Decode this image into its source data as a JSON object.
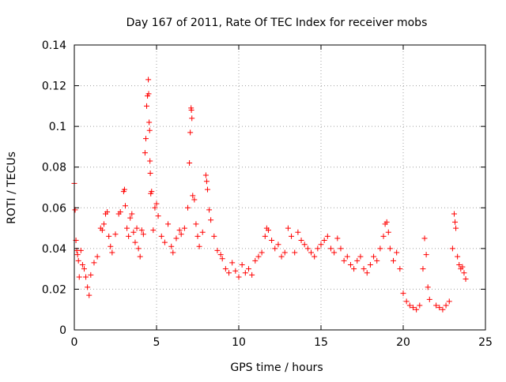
{
  "chart_data": {
    "type": "scatter",
    "title": "Day 167 of 2011, Rate Of TEC Index for receiver mobs",
    "xlabel": "GPS time / hours",
    "ylabel": "ROTI / TECUs",
    "xlim": [
      0,
      25
    ],
    "ylim": [
      0,
      0.14
    ],
    "x_ticks": [
      0,
      5,
      10,
      15,
      20,
      25
    ],
    "y_ticks": [
      0,
      0.02,
      0.04,
      0.06,
      0.08,
      0.1,
      0.12,
      0.14
    ],
    "x_tick_labels": [
      "0",
      "5",
      "10",
      "15",
      "20",
      "25"
    ],
    "y_tick_labels": [
      "0",
      "0.02",
      "0.04",
      "0.06",
      "0.08",
      "0.1",
      "0.12",
      "0.14"
    ],
    "grid": true,
    "marker": "+",
    "color": "#ff0000",
    "series": [
      {
        "name": "ROTI",
        "points": [
          [
            0.0,
            0.072
          ],
          [
            0.05,
            0.059
          ],
          [
            0.1,
            0.044
          ],
          [
            0.15,
            0.039
          ],
          [
            0.2,
            0.037
          ],
          [
            0.25,
            0.034
          ],
          [
            0.3,
            0.026
          ],
          [
            0.4,
            0.039
          ],
          [
            0.5,
            0.032
          ],
          [
            0.6,
            0.03
          ],
          [
            0.7,
            0.026
          ],
          [
            0.8,
            0.021
          ],
          [
            0.9,
            0.017
          ],
          [
            1.0,
            0.027
          ],
          [
            1.2,
            0.033
          ],
          [
            1.4,
            0.036
          ],
          [
            1.6,
            0.05
          ],
          [
            1.7,
            0.049
          ],
          [
            1.8,
            0.052
          ],
          [
            1.9,
            0.057
          ],
          [
            2.0,
            0.058
          ],
          [
            2.1,
            0.046
          ],
          [
            2.2,
            0.041
          ],
          [
            2.3,
            0.038
          ],
          [
            2.5,
            0.047
          ],
          [
            2.7,
            0.057
          ],
          [
            2.8,
            0.058
          ],
          [
            3.0,
            0.068
          ],
          [
            3.05,
            0.069
          ],
          [
            3.1,
            0.061
          ],
          [
            3.2,
            0.05
          ],
          [
            3.3,
            0.046
          ],
          [
            3.4,
            0.055
          ],
          [
            3.5,
            0.057
          ],
          [
            3.6,
            0.048
          ],
          [
            3.7,
            0.043
          ],
          [
            3.8,
            0.05
          ],
          [
            3.9,
            0.04
          ],
          [
            4.0,
            0.036
          ],
          [
            4.1,
            0.049
          ],
          [
            4.2,
            0.047
          ],
          [
            4.3,
            0.087
          ],
          [
            4.35,
            0.094
          ],
          [
            4.4,
            0.11
          ],
          [
            4.45,
            0.115
          ],
          [
            4.5,
            0.123
          ],
          [
            4.52,
            0.116
          ],
          [
            4.55,
            0.102
          ],
          [
            4.58,
            0.098
          ],
          [
            4.6,
            0.083
          ],
          [
            4.62,
            0.077
          ],
          [
            4.65,
            0.067
          ],
          [
            4.7,
            0.068
          ],
          [
            4.8,
            0.049
          ],
          [
            4.9,
            0.06
          ],
          [
            5.0,
            0.062
          ],
          [
            5.1,
            0.056
          ],
          [
            5.3,
            0.046
          ],
          [
            5.5,
            0.043
          ],
          [
            5.7,
            0.052
          ],
          [
            5.9,
            0.041
          ],
          [
            6.0,
            0.038
          ],
          [
            6.2,
            0.045
          ],
          [
            6.4,
            0.049
          ],
          [
            6.5,
            0.047
          ],
          [
            6.7,
            0.05
          ],
          [
            6.9,
            0.06
          ],
          [
            7.0,
            0.082
          ],
          [
            7.05,
            0.097
          ],
          [
            7.1,
            0.109
          ],
          [
            7.12,
            0.108
          ],
          [
            7.15,
            0.104
          ],
          [
            7.2,
            0.066
          ],
          [
            7.3,
            0.064
          ],
          [
            7.4,
            0.052
          ],
          [
            7.5,
            0.046
          ],
          [
            7.6,
            0.041
          ],
          [
            7.8,
            0.048
          ],
          [
            8.0,
            0.076
          ],
          [
            8.05,
            0.073
          ],
          [
            8.1,
            0.069
          ],
          [
            8.2,
            0.059
          ],
          [
            8.3,
            0.054
          ],
          [
            8.5,
            0.046
          ],
          [
            8.7,
            0.039
          ],
          [
            8.9,
            0.037
          ],
          [
            9.0,
            0.035
          ],
          [
            9.2,
            0.03
          ],
          [
            9.4,
            0.028
          ],
          [
            9.6,
            0.033
          ],
          [
            9.8,
            0.029
          ],
          [
            10.0,
            0.026
          ],
          [
            10.2,
            0.032
          ],
          [
            10.4,
            0.028
          ],
          [
            10.6,
            0.03
          ],
          [
            10.8,
            0.027
          ],
          [
            11.0,
            0.034
          ],
          [
            11.2,
            0.036
          ],
          [
            11.4,
            0.038
          ],
          [
            11.6,
            0.046
          ],
          [
            11.7,
            0.05
          ],
          [
            11.8,
            0.049
          ],
          [
            12.0,
            0.044
          ],
          [
            12.2,
            0.04
          ],
          [
            12.4,
            0.042
          ],
          [
            12.6,
            0.036
          ],
          [
            12.8,
            0.038
          ],
          [
            13.0,
            0.05
          ],
          [
            13.2,
            0.046
          ],
          [
            13.4,
            0.038
          ],
          [
            13.6,
            0.048
          ],
          [
            13.8,
            0.044
          ],
          [
            14.0,
            0.042
          ],
          [
            14.2,
            0.04
          ],
          [
            14.4,
            0.038
          ],
          [
            14.6,
            0.036
          ],
          [
            14.8,
            0.04
          ],
          [
            15.0,
            0.042
          ],
          [
            15.2,
            0.044
          ],
          [
            15.4,
            0.046
          ],
          [
            15.6,
            0.04
          ],
          [
            15.8,
            0.038
          ],
          [
            16.0,
            0.045
          ],
          [
            16.2,
            0.04
          ],
          [
            16.4,
            0.034
          ],
          [
            16.6,
            0.036
          ],
          [
            16.8,
            0.032
          ],
          [
            17.0,
            0.03
          ],
          [
            17.2,
            0.034
          ],
          [
            17.4,
            0.036
          ],
          [
            17.6,
            0.03
          ],
          [
            17.8,
            0.028
          ],
          [
            18.0,
            0.032
          ],
          [
            18.2,
            0.036
          ],
          [
            18.4,
            0.034
          ],
          [
            18.6,
            0.04
          ],
          [
            18.8,
            0.046
          ],
          [
            18.9,
            0.052
          ],
          [
            19.0,
            0.053
          ],
          [
            19.1,
            0.048
          ],
          [
            19.2,
            0.04
          ],
          [
            19.4,
            0.034
          ],
          [
            19.6,
            0.038
          ],
          [
            19.8,
            0.03
          ],
          [
            20.0,
            0.018
          ],
          [
            20.2,
            0.014
          ],
          [
            20.4,
            0.012
          ],
          [
            20.6,
            0.011
          ],
          [
            20.8,
            0.01
          ],
          [
            21.0,
            0.012
          ],
          [
            21.2,
            0.03
          ],
          [
            21.3,
            0.045
          ],
          [
            21.4,
            0.037
          ],
          [
            21.5,
            0.021
          ],
          [
            21.6,
            0.015
          ],
          [
            22.0,
            0.012
          ],
          [
            22.2,
            0.011
          ],
          [
            22.4,
            0.01
          ],
          [
            22.6,
            0.012
          ],
          [
            22.8,
            0.014
          ],
          [
            23.0,
            0.04
          ],
          [
            23.1,
            0.057
          ],
          [
            23.15,
            0.053
          ],
          [
            23.2,
            0.05
          ],
          [
            23.3,
            0.036
          ],
          [
            23.4,
            0.032
          ],
          [
            23.5,
            0.03
          ],
          [
            23.6,
            0.031
          ],
          [
            23.7,
            0.028
          ],
          [
            23.8,
            0.025
          ]
        ]
      }
    ]
  }
}
